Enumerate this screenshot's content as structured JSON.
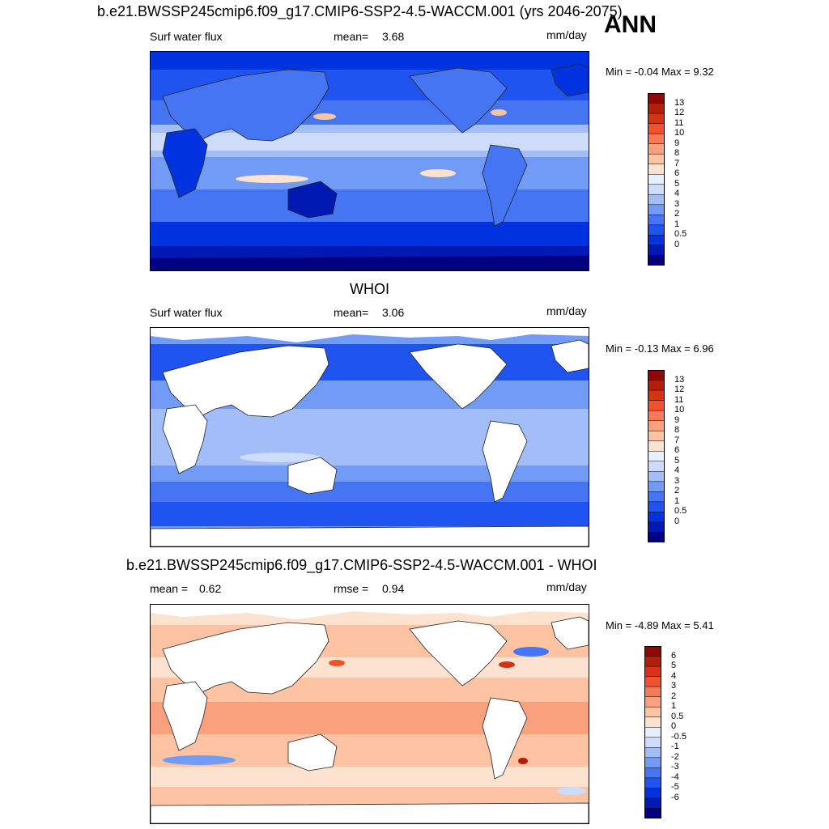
{
  "main_title": "b.e21.BWSSP245cmip6.f09_g17.CMIP6-SSP2-4.5-WACCM.001 (yrs 2046-2075)",
  "season": "ANN",
  "colors": {
    "abs_scale": [
      "#000080",
      "#0019B3",
      "#0033E0",
      "#1F54F0",
      "#4575F2",
      "#729BF5",
      "#A2BDF8",
      "#CCDCFA",
      "#E6EFFC",
      "#FDE3CF",
      "#FDC3A2",
      "#F9A07C",
      "#F57A58",
      "#F0522E",
      "#D83214",
      "#B21E09",
      "#8C0A03"
    ],
    "diff_scale": [
      "#000080",
      "#0019B3",
      "#0033E0",
      "#1F54F0",
      "#4575F2",
      "#729BF5",
      "#A2BDF8",
      "#CCDCFA",
      "#E6EFFC",
      "#FDE3CF",
      "#FDC3A2",
      "#F9A07C",
      "#F57A58",
      "#F0522E",
      "#D83214",
      "#B21E09",
      "#8C0A03"
    ],
    "land_white": "#ffffff",
    "coast": "#222222"
  },
  "panels": [
    {
      "variable": "Surf water flux",
      "mean_label": "mean=",
      "mean_value": "3.68",
      "units": "mm/day",
      "min_max": "Min =  -0.04 Max =   9.32",
      "colorbar_labels": [
        "13",
        "12",
        "11",
        "10",
        "9",
        "8",
        "7",
        "6",
        "5",
        "4",
        "3",
        "2",
        "1",
        "0.5",
        "0"
      ]
    },
    {
      "title": "WHOI",
      "variable": "Surf water flux",
      "mean_label": "mean=",
      "mean_value": "3.06",
      "units": "mm/day",
      "min_max": "Min =  -0.13 Max =   6.96",
      "colorbar_labels": [
        "13",
        "12",
        "11",
        "10",
        "9",
        "8",
        "7",
        "6",
        "5",
        "4",
        "3",
        "2",
        "1",
        "0.5",
        "0"
      ]
    },
    {
      "title": "b.e21.BWSSP245cmip6.f09_g17.CMIP6-SSP2-4.5-WACCM.001 - WHOI",
      "mean_label": "mean =",
      "mean_value": "0.62",
      "rmse_label": "rmse =",
      "rmse_value": "0.94",
      "units": "mm/day",
      "min_max": "Min =  -4.89 Max =   5.41",
      "colorbar_labels": [
        "6",
        "5",
        "4",
        "3",
        "2",
        "1",
        "0.5",
        "0",
        "-0.5",
        "-1",
        "-2",
        "-3",
        "-4",
        "-5",
        "-6"
      ]
    }
  ]
}
